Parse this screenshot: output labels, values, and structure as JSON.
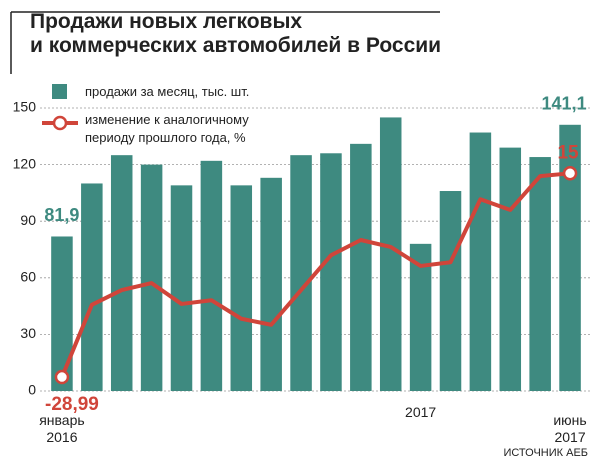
{
  "chart_data": {
    "type": "bar",
    "title": "Продажи новых легковых\nи коммерческих автомобилей в России",
    "categories": [
      "январь\n2016",
      null,
      null,
      null,
      null,
      null,
      null,
      null,
      null,
      null,
      null,
      null,
      "2017",
      null,
      null,
      null,
      null,
      "июнь\n2017"
    ],
    "series": [
      {
        "name": "продажи за месяц, тыс. шт.",
        "type": "bar",
        "color": "#3e8a80",
        "values": [
          81.9,
          110,
          125,
          120,
          109,
          122,
          109,
          113,
          125,
          126,
          131,
          145,
          78,
          106,
          137,
          129,
          124,
          141.1
        ],
        "value_labels": [
          "81,9",
          null,
          null,
          null,
          null,
          null,
          null,
          null,
          null,
          null,
          null,
          null,
          null,
          null,
          null,
          null,
          null,
          "141,1"
        ]
      },
      {
        "name": "изменение к аналогичному\nпериоду прошлого года, %",
        "type": "line",
        "axis": "y2",
        "color": "#d0453a",
        "values": [
          -28.99,
          -13.4,
          -10.2,
          -8.7,
          -13.2,
          -12.4,
          -16.4,
          -17.7,
          -10.2,
          -2.7,
          0.6,
          -0.9,
          -5.0,
          -4.2,
          9.4,
          7.1,
          14.4,
          15
        ],
        "value_labels": [
          "-28,99",
          null,
          null,
          null,
          null,
          null,
          null,
          null,
          null,
          null,
          null,
          null,
          null,
          null,
          null,
          null,
          null,
          "15"
        ]
      }
    ],
    "ylim": [
      0,
      150
    ],
    "yticks": [
      0,
      30,
      60,
      90,
      120,
      150
    ],
    "y2lim": [
      -32,
      29.1
    ],
    "grid": true,
    "source": "ИСТОЧНИК АЕБ"
  }
}
